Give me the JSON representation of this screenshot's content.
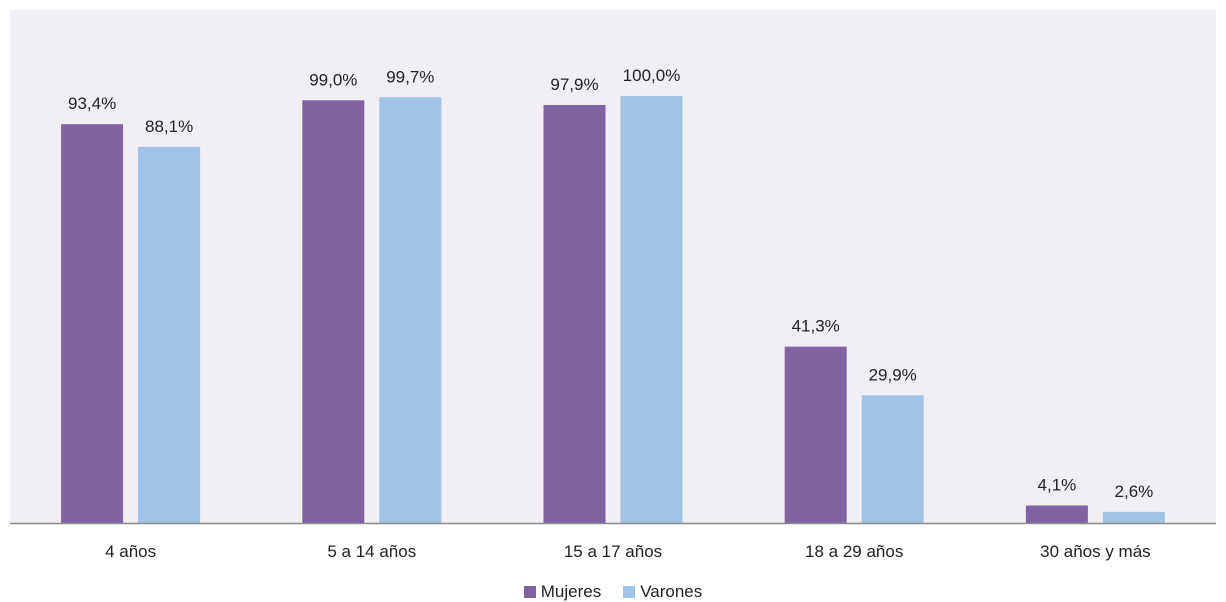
{
  "chart_data": {
    "type": "bar",
    "title": "",
    "xlabel": "",
    "ylabel": "",
    "ylim": [
      0,
      100
    ],
    "categories": [
      "4 años",
      "5 a 14 años",
      "15 a 17 años",
      "18 a 29 años",
      "30 años y más"
    ],
    "series": [
      {
        "name": "Mujeres",
        "color": "#8064a2",
        "values": [
          93.4,
          99.0,
          97.9,
          41.3,
          4.1
        ],
        "labels": [
          "93,4%",
          "99,0%",
          "97,9%",
          "41,3%",
          "4,1%"
        ]
      },
      {
        "name": "Varones",
        "color": "#9fc4e7",
        "values": [
          88.1,
          99.7,
          100.0,
          29.9,
          2.6
        ],
        "labels": [
          "88,1%",
          "99,7%",
          "100,0%",
          "29,9%",
          "2,6%"
        ]
      }
    ],
    "grid": false,
    "legend_position": "bottom"
  },
  "legend": {
    "mujeres_label": "Mujeres",
    "varones_label": "Varones"
  },
  "colors": {
    "plot_background": "#f1eef4",
    "axis": "#8a8a8a"
  }
}
